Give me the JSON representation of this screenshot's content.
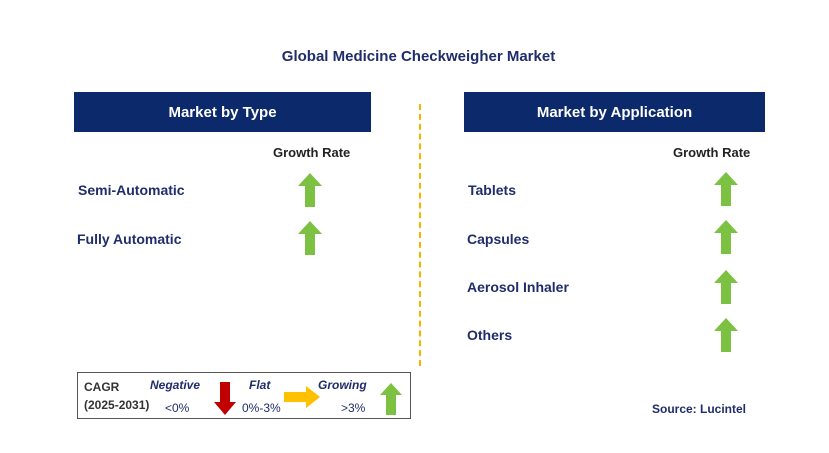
{
  "title": "Global Medicine Checkweigher Market",
  "left_panel": {
    "header": "Market by Type",
    "growth_label": "Growth Rate",
    "items": [
      {
        "label": "Semi-Automatic",
        "trend": "growing"
      },
      {
        "label": "Fully Automatic",
        "trend": "growing"
      }
    ]
  },
  "right_panel": {
    "header": "Market by Application",
    "growth_label": "Growth Rate",
    "items": [
      {
        "label": "Tablets",
        "trend": "growing"
      },
      {
        "label": "Capsules",
        "trend": "growing"
      },
      {
        "label": "Aerosol Inhaler",
        "trend": "growing"
      },
      {
        "label": "Others",
        "trend": "growing"
      }
    ]
  },
  "legend": {
    "cagr_label": "CAGR",
    "period": "(2025-2031)",
    "negative": {
      "label": "Negative",
      "range": "<0%",
      "color": "#c00000"
    },
    "flat": {
      "label": "Flat",
      "range": "0%-3%",
      "color": "#ffc000"
    },
    "growing": {
      "label": "Growing",
      "range": ">3%",
      "color": "#7cc142"
    }
  },
  "source": "Source: Lucintel",
  "colors": {
    "header_bg": "#0c2a6b",
    "divider": "#f5b400",
    "up_arrow": "#7cc142"
  }
}
